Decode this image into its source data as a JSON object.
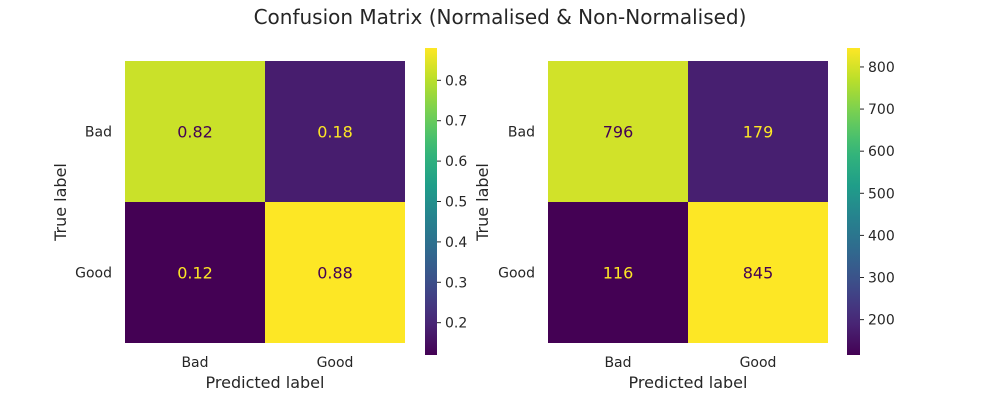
{
  "title": "Confusion Matrix (Normalised & Non-Normalised)",
  "chart_data": [
    {
      "type": "heatmap",
      "title": "",
      "xlabel": "Predicted label",
      "ylabel": "True label",
      "x_categories": [
        "Bad",
        "Good"
      ],
      "y_categories": [
        "Bad",
        "Good"
      ],
      "values": [
        [
          0.82,
          0.18
        ],
        [
          0.12,
          0.88
        ]
      ],
      "cell_text": [
        [
          "0.82",
          "0.18"
        ],
        [
          "0.12",
          "0.88"
        ]
      ],
      "colormap": "viridis",
      "colorbar": {
        "vmin": 0.12,
        "vmax": 0.88,
        "ticks": [
          0.2,
          0.3,
          0.4,
          0.5,
          0.6,
          0.7,
          0.8
        ],
        "tick_labels": [
          "0.2",
          "0.3",
          "0.4",
          "0.5",
          "0.6",
          "0.7",
          "0.8"
        ]
      },
      "grid": false
    },
    {
      "type": "heatmap",
      "title": "",
      "xlabel": "Predicted label",
      "ylabel": "True label",
      "x_categories": [
        "Bad",
        "Good"
      ],
      "y_categories": [
        "Bad",
        "Good"
      ],
      "values": [
        [
          796,
          179
        ],
        [
          116,
          845
        ]
      ],
      "cell_text": [
        [
          "796",
          "179"
        ],
        [
          "116",
          "845"
        ]
      ],
      "colormap": "viridis",
      "colorbar": {
        "vmin": 116,
        "vmax": 845,
        "ticks": [
          200,
          300,
          400,
          500,
          600,
          700,
          800
        ],
        "tick_labels": [
          "200",
          "300",
          "400",
          "500",
          "600",
          "700",
          "800"
        ]
      },
      "grid": false
    }
  ]
}
